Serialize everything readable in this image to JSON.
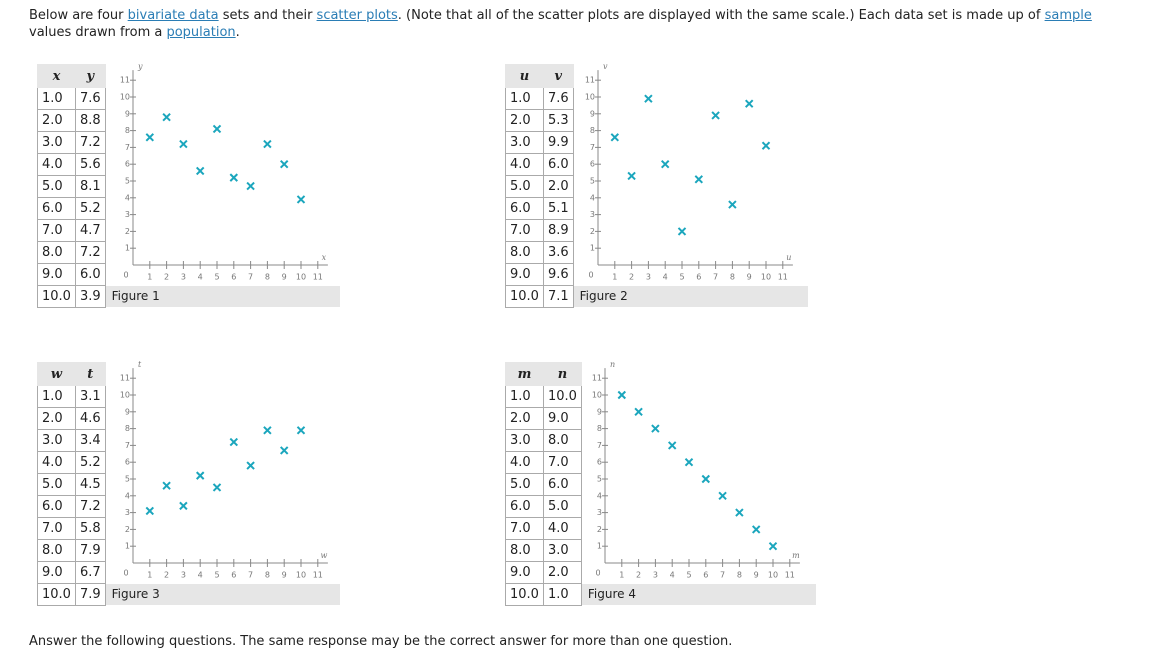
{
  "intro": [
    {
      "text": "Below are four "
    },
    {
      "text": "bivariate data",
      "link": true
    },
    {
      "text": " sets and their "
    },
    {
      "text": "scatter plots",
      "link": true
    },
    {
      "text": ". (Note that all of the scatter plots are displayed with the same scale.) Each data set is made up of "
    },
    {
      "text": "sample",
      "link": true
    },
    {
      "text": " values drawn from a "
    },
    {
      "text": "population",
      "link": true
    },
    {
      "text": "."
    }
  ],
  "chart_data": [
    {
      "type": "scatter",
      "figure": "Figure 1",
      "x_label": "x",
      "color": "#1ba6bd",
      "x": [
        1,
        2,
        3,
        4,
        5,
        6,
        7,
        8,
        9,
        10
      ],
      "x_value_labels": [
        "1.0",
        "2.0",
        "3.0",
        "4.0",
        "5.0",
        "6.0",
        "7.0",
        "8.0",
        "9.0",
        "10.0"
      ],
      "series": [
        {
          "name": "y",
          "values": [
            7.6,
            8.8,
            7.2,
            5.6,
            8.1,
            5.2,
            4.7,
            7.2,
            6.0,
            3.9
          ],
          "value_labels": [
            "7.6",
            "8.8",
            "7.2",
            "5.6",
            "8.1",
            "5.2",
            "4.7",
            "7.2",
            "6.0",
            "3.9"
          ]
        }
      ],
      "xlim": [
        0,
        11.6
      ],
      "ylim": [
        0,
        11.6
      ],
      "xticks": [
        1,
        2,
        3,
        4,
        5,
        6,
        7,
        8,
        9,
        10,
        11
      ],
      "yticks": [
        1,
        2,
        3,
        4,
        5,
        6,
        7,
        8,
        9,
        10,
        11
      ]
    },
    {
      "type": "scatter",
      "figure": "Figure 2",
      "x_label": "u",
      "color": "#1ba6bd",
      "x": [
        1,
        2,
        3,
        4,
        5,
        6,
        7,
        8,
        9,
        10
      ],
      "x_value_labels": [
        "1.0",
        "2.0",
        "3.0",
        "4.0",
        "5.0",
        "6.0",
        "7.0",
        "8.0",
        "9.0",
        "10.0"
      ],
      "series": [
        {
          "name": "v",
          "values": [
            7.6,
            5.3,
            9.9,
            6.0,
            2.0,
            5.1,
            8.9,
            3.6,
            9.6,
            7.1
          ],
          "value_labels": [
            "7.6",
            "5.3",
            "9.9",
            "6.0",
            "2.0",
            "5.1",
            "8.9",
            "3.6",
            "9.6",
            "7.1"
          ]
        }
      ],
      "xlim": [
        0,
        11.6
      ],
      "ylim": [
        0,
        11.6
      ],
      "xticks": [
        1,
        2,
        3,
        4,
        5,
        6,
        7,
        8,
        9,
        10,
        11
      ],
      "yticks": [
        1,
        2,
        3,
        4,
        5,
        6,
        7,
        8,
        9,
        10,
        11
      ]
    },
    {
      "type": "scatter",
      "figure": "Figure 3",
      "x_label": "w",
      "color": "#1ba6bd",
      "x": [
        1,
        2,
        3,
        4,
        5,
        6,
        7,
        8,
        9,
        10
      ],
      "x_value_labels": [
        "1.0",
        "2.0",
        "3.0",
        "4.0",
        "5.0",
        "6.0",
        "7.0",
        "8.0",
        "9.0",
        "10.0"
      ],
      "series": [
        {
          "name": "t",
          "values": [
            3.1,
            4.6,
            3.4,
            5.2,
            4.5,
            7.2,
            5.8,
            7.9,
            6.7,
            7.9
          ],
          "value_labels": [
            "3.1",
            "4.6",
            "3.4",
            "5.2",
            "4.5",
            "7.2",
            "5.8",
            "7.9",
            "6.7",
            "7.9"
          ]
        }
      ],
      "xlim": [
        0,
        11.6
      ],
      "ylim": [
        0,
        11.6
      ],
      "xticks": [
        1,
        2,
        3,
        4,
        5,
        6,
        7,
        8,
        9,
        10,
        11
      ],
      "yticks": [
        1,
        2,
        3,
        4,
        5,
        6,
        7,
        8,
        9,
        10,
        11
      ]
    },
    {
      "type": "scatter",
      "figure": "Figure 4",
      "x_label": "m",
      "color": "#1ba6bd",
      "x": [
        1,
        2,
        3,
        4,
        5,
        6,
        7,
        8,
        9,
        10
      ],
      "x_value_labels": [
        "1.0",
        "2.0",
        "3.0",
        "4.0",
        "5.0",
        "6.0",
        "7.0",
        "8.0",
        "9.0",
        "10.0"
      ],
      "series": [
        {
          "name": "n",
          "values": [
            10.0,
            9.0,
            8.0,
            7.0,
            6.0,
            5.0,
            4.0,
            3.0,
            2.0,
            1.0
          ],
          "value_labels": [
            "10.0",
            "9.0",
            "8.0",
            "7.0",
            "6.0",
            "5.0",
            "4.0",
            "3.0",
            "2.0",
            "1.0"
          ]
        }
      ],
      "xlim": [
        0,
        11.6
      ],
      "ylim": [
        0,
        11.6
      ],
      "xticks": [
        1,
        2,
        3,
        4,
        5,
        6,
        7,
        8,
        9,
        10,
        11
      ],
      "yticks": [
        1,
        2,
        3,
        4,
        5,
        6,
        7,
        8,
        9,
        10,
        11
      ]
    }
  ],
  "footer": "Answer the following questions. The same response may be the correct answer for more than one question."
}
